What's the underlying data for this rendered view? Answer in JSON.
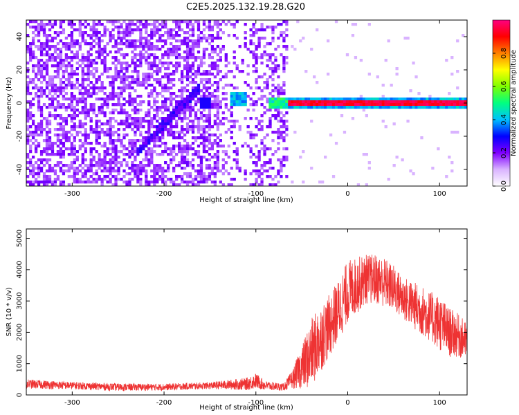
{
  "title": "C2E5.2025.132.19.28.G20",
  "chart_data": [
    {
      "type": "heatmap",
      "title": "C2E5.2025.132.19.28.G20",
      "xlabel": "Height of straight line (km)",
      "ylabel": "Frequency (Hz)",
      "xlim": [
        -350,
        130
      ],
      "ylim": [
        -50,
        50
      ],
      "x_ticks": [
        "-300",
        "-200",
        "-100",
        "0",
        "100"
      ],
      "y_ticks": [
        "-40",
        "-20",
        "0",
        "20",
        "40"
      ],
      "colorbar": {
        "label": "Normalized spectral amplitude",
        "range": [
          0,
          1
        ],
        "ticks": [
          "0.0",
          "0.2",
          "0.4",
          "0.6",
          "0.8"
        ],
        "colors": [
          "#ffffff",
          "#d9b3ff",
          "#8000ff",
          "#0000ff",
          "#00c0ff",
          "#00ff80",
          "#80ff00",
          "#ffff00",
          "#ff8000",
          "#ff0000",
          "#ff0080"
        ]
      },
      "features": {
        "noise_region_x": [
          -350,
          -65
        ],
        "signal_region_x": [
          -65,
          130
        ],
        "signal_frequency": 0,
        "diagonal_feature": {
          "x": [
            -230,
            -160
          ],
          "y": [
            -30,
            10
          ]
        }
      }
    },
    {
      "type": "line",
      "xlabel": "Height of straight line (km)",
      "ylabel": "SNR (10 * v/v)",
      "xlim": [
        -350,
        130
      ],
      "ylim": [
        0,
        5300
      ],
      "x_ticks": [
        "-300",
        "-200",
        "-100",
        "0",
        "100"
      ],
      "y_ticks": [
        "0",
        "1000",
        "2000",
        "3000",
        "4000",
        "5000"
      ],
      "color": "#ee3333",
      "envelope": {
        "x": [
          -350,
          -300,
          -250,
          -200,
          -150,
          -110,
          -100,
          -90,
          -70,
          -60,
          -50,
          -40,
          -30,
          -20,
          -10,
          0,
          10,
          20,
          30,
          40,
          50,
          60,
          70,
          80,
          90,
          100,
          110,
          120,
          130
        ],
        "mid": [
          350,
          300,
          250,
          250,
          300,
          350,
          450,
          300,
          250,
          500,
          900,
          1300,
          1800,
          2200,
          2700,
          3300,
          3500,
          3700,
          3700,
          3600,
          3400,
          3100,
          2900,
          2700,
          2500,
          2300,
          2000,
          1900,
          1700
        ],
        "amp": [
          150,
          120,
          120,
          110,
          110,
          200,
          250,
          150,
          120,
          300,
          700,
          1100,
          1100,
          1000,
          1000,
          1000,
          900,
          800,
          800,
          800,
          750,
          700,
          750,
          800,
          800,
          900,
          800,
          700,
          600
        ]
      }
    }
  ]
}
